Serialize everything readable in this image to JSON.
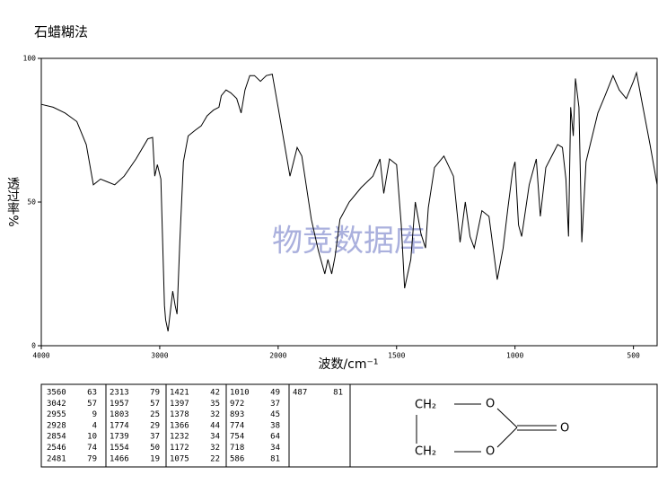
{
  "chart_data": {
    "type": "line",
    "title": "石蜡糊法",
    "xlabel": "波数/cm⁻¹",
    "ylabel": "透过率%",
    "watermark": "物竞数据库",
    "color": "#000000",
    "xlim": [
      4000,
      400
    ],
    "x_scale_break": 2000,
    "xticks": [
      4000,
      3000,
      2000,
      1500,
      1000,
      500
    ],
    "ylim": [
      0,
      100
    ],
    "yticks": [
      0,
      50,
      100
    ],
    "x": [
      4000,
      3900,
      3800,
      3700,
      3620,
      3560,
      3500,
      3440,
      3380,
      3300,
      3200,
      3100,
      3060,
      3042,
      3020,
      2990,
      2960,
      2950,
      2930,
      2910,
      2890,
      2870,
      2854,
      2830,
      2800,
      2760,
      2700,
      2650,
      2600,
      2546,
      2500,
      2480,
      2440,
      2400,
      2350,
      2313,
      2280,
      2240,
      2200,
      2150,
      2100,
      2050,
      2000,
      1950,
      1920,
      1900,
      1860,
      1830,
      1803,
      1790,
      1774,
      1760,
      1739,
      1700,
      1650,
      1600,
      1570,
      1554,
      1530,
      1500,
      1480,
      1466,
      1440,
      1421,
      1410,
      1397,
      1378,
      1366,
      1340,
      1300,
      1260,
      1232,
      1210,
      1190,
      1172,
      1140,
      1110,
      1075,
      1050,
      1030,
      1010,
      1000,
      985,
      972,
      940,
      910,
      893,
      870,
      820,
      800,
      785,
      774,
      765,
      754,
      745,
      730,
      718,
      700,
      650,
      620,
      586,
      560,
      530,
      500,
      487,
      460,
      430,
      400
    ],
    "values": [
      84,
      83,
      81,
      78,
      70,
      56,
      58,
      57,
      56,
      59,
      65,
      72,
      72.5,
      59,
      63,
      58,
      14,
      9,
      5,
      12,
      19,
      14,
      11,
      36,
      64,
      73,
      75,
      76.5,
      80,
      82,
      83,
      87,
      89,
      88,
      86,
      81,
      89,
      94,
      94,
      92,
      94,
      94.5,
      83,
      59,
      69,
      66,
      44,
      33,
      25,
      30,
      25,
      31,
      44,
      50,
      55,
      59,
      65,
      53,
      65,
      63,
      42,
      20,
      30,
      50,
      45,
      39,
      34,
      48,
      62,
      66,
      59,
      36,
      50,
      38,
      34,
      47,
      45,
      23,
      34,
      48,
      61,
      64,
      42,
      38,
      56,
      65,
      45,
      62,
      70,
      69,
      58,
      38,
      83,
      73,
      93,
      83,
      36,
      64,
      81,
      87,
      94,
      89,
      86,
      92,
      95,
      83,
      70,
      56
    ]
  },
  "peak_table": {
    "columns": [
      [
        [
          3560,
          63
        ],
        [
          3042,
          57
        ],
        [
          2955,
          9
        ],
        [
          2928,
          4
        ],
        [
          2854,
          10
        ],
        [
          2546,
          74
        ],
        [
          2481,
          79
        ]
      ],
      [
        [
          2313,
          79
        ],
        [
          1957,
          57
        ],
        [
          1803,
          25
        ],
        [
          1774,
          29
        ],
        [
          1739,
          37
        ],
        [
          1554,
          50
        ],
        [
          1466,
          19
        ]
      ],
      [
        [
          1421,
          42
        ],
        [
          1397,
          35
        ],
        [
          1378,
          32
        ],
        [
          1366,
          44
        ],
        [
          1232,
          34
        ],
        [
          1172,
          32
        ],
        [
          1075,
          22
        ]
      ],
      [
        [
          1010,
          49
        ],
        [
          972,
          37
        ],
        [
          893,
          45
        ],
        [
          774,
          38
        ],
        [
          754,
          64
        ],
        [
          718,
          34
        ],
        [
          586,
          81
        ]
      ],
      [
        [
          487,
          81
        ]
      ]
    ]
  },
  "structure": {
    "atoms": [
      "CH₂",
      "O",
      "O",
      "CH₂",
      "O"
    ]
  }
}
